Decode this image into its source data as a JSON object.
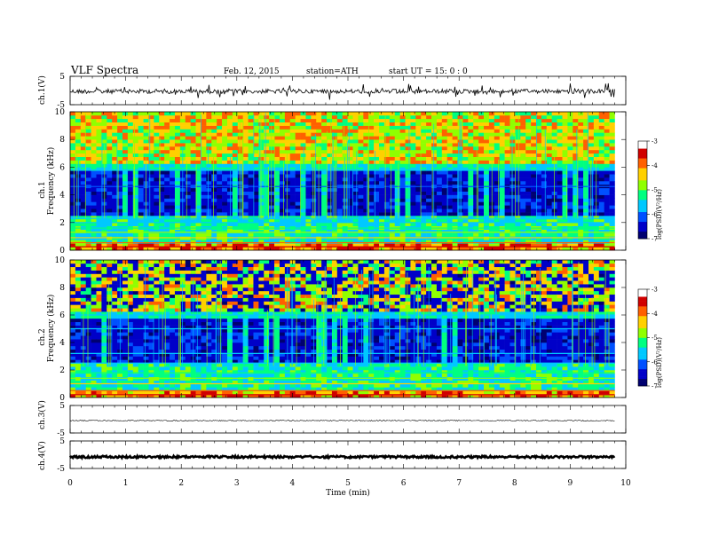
{
  "header": {
    "title": "VLF  Spectra",
    "date": "Feb. 12, 2015",
    "station": "station=ATH",
    "start": "start  UT  =   15: 0  : 0"
  },
  "chart_data": {
    "type": "heatmap",
    "xlabel": "Time  (min)",
    "xlim": [
      0,
      10
    ],
    "x_ticks": [
      "0",
      "1",
      "2",
      "3",
      "4",
      "5",
      "6",
      "7",
      "8",
      "9",
      "10"
    ],
    "data_end_min": 9.8,
    "panels": [
      {
        "id": "ch1_wave",
        "type": "line",
        "ylabel": "ch.1(V)",
        "ylim": [
          -5,
          5
        ],
        "y_ticks": [
          "5",
          "-5"
        ],
        "mean_level": -0.3,
        "spikes": true
      },
      {
        "id": "ch1_spec",
        "type": "heatmap",
        "ylabel_top": "ch.1",
        "ylabel": "Frequency  (kHz)",
        "ylim": [
          0,
          10
        ],
        "y_ticks": [
          "0",
          "2",
          "4",
          "6",
          "8",
          "10"
        ],
        "band_lows_kHz": [
          0,
          2.3
        ],
        "band_quiet_kHz": [
          2.3,
          5.8
        ],
        "band_high_kHz": [
          5.8,
          10
        ],
        "colorbar": {
          "label": "log(PSD)(V²/Hz)",
          "ticks": [
            "-3",
            "-4",
            "-5",
            "-6",
            "-7"
          ],
          "range": [
            -7,
            -3
          ]
        }
      },
      {
        "id": "ch2_spec",
        "type": "heatmap",
        "ylabel_top": "ch.2",
        "ylabel": "Frequency  (kHz)",
        "ylim": [
          0,
          10
        ],
        "y_ticks": [
          "0",
          "2",
          "4",
          "6",
          "8",
          "10"
        ],
        "colorbar": {
          "label": "log(PSD)(V²/Hz)",
          "ticks": [
            "-3",
            "-4",
            "-5",
            "-6",
            "-7"
          ],
          "range": [
            -7,
            -3
          ]
        }
      },
      {
        "id": "ch3_wave",
        "type": "line",
        "ylabel": "ch.3(V)",
        "ylim": [
          -5,
          5
        ],
        "y_ticks": [
          "5",
          "-5"
        ],
        "mean_level": -0.5
      },
      {
        "id": "ch4_wave",
        "type": "line",
        "ylabel": "ch.4(V)",
        "ylim": [
          -5,
          5
        ],
        "y_ticks": [
          "5",
          "-5"
        ],
        "mean_level": -0.8
      }
    ]
  },
  "colors": {
    "colormap": [
      "#000070",
      "#0000c8",
      "#0050ff",
      "#00c8ff",
      "#00ff80",
      "#90ff00",
      "#ffd000",
      "#ff6000",
      "#d00000",
      "#ffffff"
    ]
  }
}
